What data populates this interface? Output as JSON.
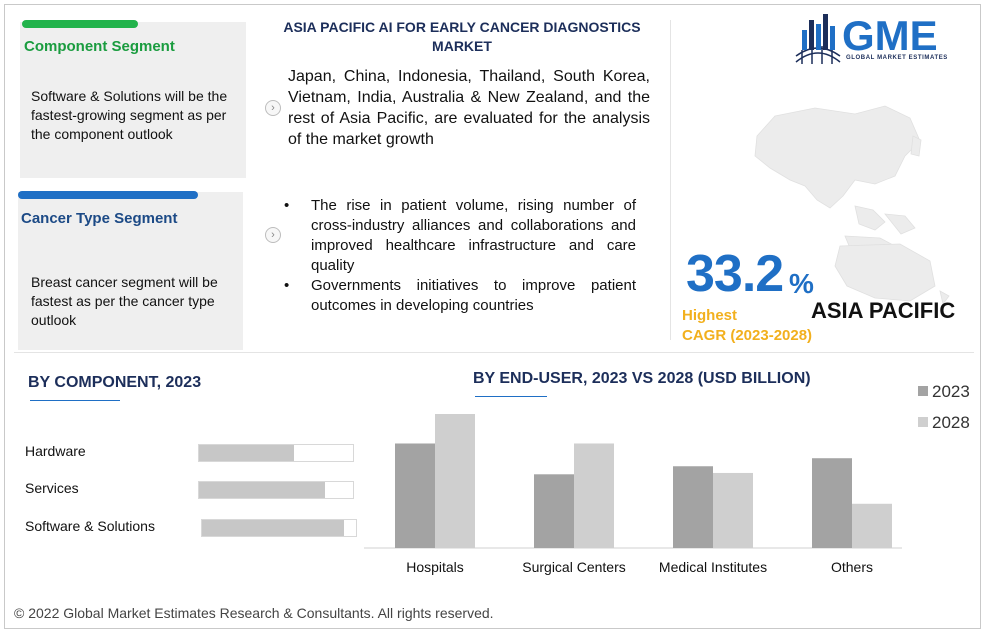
{
  "header": {
    "title": "ASIA PACIFIC AI FOR EARLY CANCER DIAGNOSTICS MARKET"
  },
  "segments": [
    {
      "title": "Component Segment",
      "text": "Software & Solutions will be the fastest-growing segment as per the component outlook",
      "accent": "#22b34b",
      "title_color": "#1a9c3f"
    },
    {
      "title": "Cancer Type Segment",
      "text": "Breast cancer segment will be fastest as per the cancer type outlook",
      "accent": "#1f6fc5",
      "title_color": "#1c4a86"
    }
  ],
  "overview": {
    "paragraph": "Japan, China, Indonesia, Thailand, South Korea, Vietnam, India, Australia & New Zealand, and the rest of Asia Pacific, are evaluated for the analysis of the market growth",
    "bullets": [
      "The rise in patient volume, rising number of cross-industry alliances and collaborations and improved healthcare infrastructure and care quality",
      "Governments initiatives to improve patient outcomes in developing countries"
    ]
  },
  "logo": {
    "text": "GME",
    "subtitle": "GLOBAL MARKET ESTIMATES"
  },
  "highlight": {
    "value": "33.2",
    "unit": "%",
    "label_1": "Highest",
    "label_2": "CAGR (2023-2028)",
    "region": "ASIA PACIFIC"
  },
  "component_chart": {
    "title": "BY COMPONENT, 2023"
  },
  "enduser_chart": {
    "title": "BY END-USER, 2023 VS 2028 (USD BILLION)"
  },
  "chart_data": [
    {
      "type": "bar",
      "orientation": "horizontal",
      "title": "BY COMPONENT, 2023",
      "categories": [
        "Hardware",
        "Services",
        "Software & Solutions"
      ],
      "values": [
        0.62,
        0.82,
        0.92
      ],
      "value_scale": "relative share of track (0-1)",
      "color": "#c7c7c7"
    },
    {
      "type": "bar",
      "orientation": "vertical",
      "title": "BY END-USER, 2023 VS 2028 (USD BILLION)",
      "categories": [
        "Hospitals",
        "Surgical Centers",
        "Medical Institutes",
        "Others"
      ],
      "series": [
        {
          "name": "2023",
          "values": [
            0.78,
            0.55,
            0.61,
            0.67
          ],
          "color": "#a3a3a3"
        },
        {
          "name": "2028",
          "values": [
            1.0,
            0.78,
            0.56,
            0.33
          ],
          "color": "#cfcfcf"
        }
      ],
      "ylim": [
        0,
        1
      ],
      "value_scale": "relative (no axis printed)",
      "legend": "top-right",
      "grid": false
    }
  ],
  "footer": {
    "copyright": "© 2022 Global Market Estimates Research & Consultants. All rights reserved."
  }
}
